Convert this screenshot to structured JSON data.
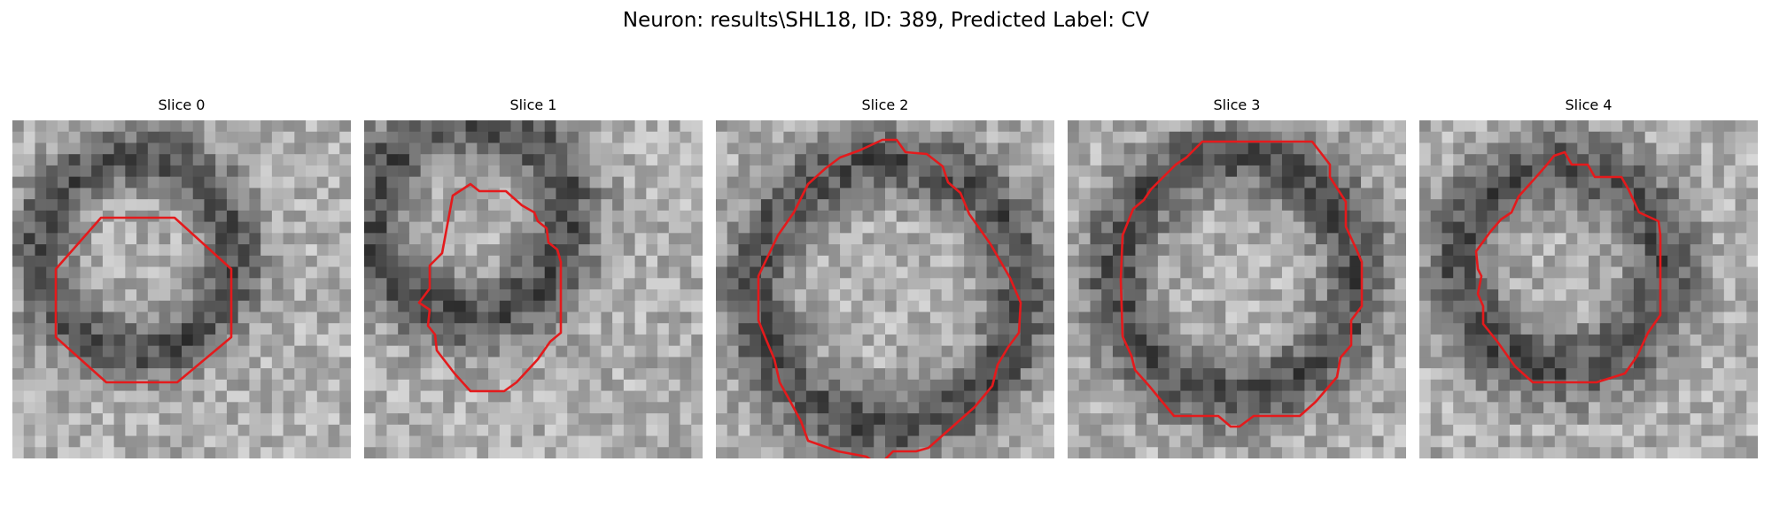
{
  "figure": {
    "suptitle": "Neuron: results\\SHL18, ID: 389, Predicted Label: CV",
    "contour_color": "#e41a1c",
    "colormap": "gray"
  },
  "panels": [
    {
      "title": "Slice 0"
    },
    {
      "title": "Slice 1"
    },
    {
      "title": "Slice 2"
    },
    {
      "title": "Slice 3"
    },
    {
      "title": "Slice 4"
    }
  ]
}
